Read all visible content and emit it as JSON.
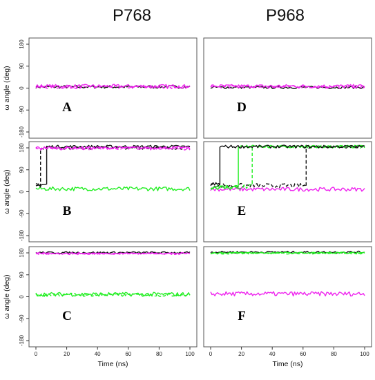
{
  "column_titles": [
    "P768",
    "P968"
  ],
  "colors": {
    "black": "#111111",
    "magenta": "#ee22ee",
    "green": "#22ee22"
  },
  "chart_data": [
    {
      "type": "line",
      "panel": "A",
      "column": "P768",
      "row": 0,
      "ylabel": "ω angle (deg)",
      "xlabel": "",
      "ylim": [
        -180,
        180
      ],
      "xlim": [
        0,
        100
      ],
      "yticks": [
        180,
        90,
        0,
        -90,
        -180
      ],
      "xticks": [],
      "series": [
        {
          "color": "black",
          "dash": false,
          "segments": [
            {
              "x0": 0,
              "x1": 100,
              "y": 5,
              "noise": 6
            }
          ]
        },
        {
          "color": "magenta",
          "dash": false,
          "segments": [
            {
              "x0": 0,
              "x1": 100,
              "y": 8,
              "noise": 7
            }
          ]
        },
        {
          "color": "magenta",
          "dash": true,
          "segments": [
            {
              "x0": 0,
              "x1": 100,
              "y": 4,
              "noise": 6
            }
          ]
        }
      ]
    },
    {
      "type": "line",
      "panel": "D",
      "column": "P968",
      "row": 0,
      "ylabel": "",
      "xlabel": "",
      "ylim": [
        -180,
        180
      ],
      "xlim": [
        0,
        100
      ],
      "yticks": [],
      "xticks": [],
      "series": [
        {
          "color": "black",
          "dash": false,
          "segments": [
            {
              "x0": 0,
              "x1": 100,
              "y": 3,
              "noise": 5
            }
          ]
        },
        {
          "color": "magenta",
          "dash": false,
          "segments": [
            {
              "x0": 0,
              "x1": 100,
              "y": 8,
              "noise": 7
            }
          ]
        },
        {
          "color": "magenta",
          "dash": true,
          "segments": [
            {
              "x0": 0,
              "x1": 100,
              "y": 5,
              "noise": 6
            }
          ]
        }
      ]
    },
    {
      "type": "line",
      "panel": "B",
      "column": "P768",
      "row": 1,
      "ylabel": "ω angle (deg)",
      "xlabel": "",
      "ylim": [
        -180,
        180
      ],
      "xlim": [
        0,
        100
      ],
      "yticks": [
        180,
        90,
        0,
        -90,
        -180
      ],
      "xticks": [],
      "series": [
        {
          "color": "green",
          "dash": false,
          "segments": [
            {
              "x0": 0,
              "x1": 100,
              "y": 12,
              "noise": 8
            }
          ]
        },
        {
          "color": "black",
          "dash": true,
          "segments": [
            {
              "x0": 0,
              "x1": 3,
              "y": 25,
              "noise": 8
            },
            {
              "x0": 3,
              "x1": 100,
              "y": 180,
              "noise": 6
            }
          ]
        },
        {
          "color": "black",
          "dash": false,
          "segments": [
            {
              "x0": 0,
              "x1": 7,
              "y": 30,
              "noise": 8
            },
            {
              "x0": 7,
              "x1": 100,
              "y": 185,
              "noise": 6
            }
          ]
        },
        {
          "color": "magenta",
          "dash": false,
          "segments": [
            {
              "x0": 0,
              "x1": 100,
              "y": 180,
              "noise": 6
            }
          ]
        },
        {
          "color": "magenta",
          "dash": true,
          "segments": [
            {
              "x0": 0,
              "x1": 100,
              "y": 177,
              "noise": 6
            }
          ]
        }
      ]
    },
    {
      "type": "line",
      "panel": "E",
      "column": "P968",
      "row": 1,
      "ylabel": "",
      "xlabel": "",
      "ylim": [
        -180,
        180
      ],
      "xlim": [
        0,
        100
      ],
      "yticks": [],
      "xticks": [],
      "series": [
        {
          "color": "magenta",
          "dash": false,
          "segments": [
            {
              "x0": 0,
              "x1": 100,
              "y": 10,
              "noise": 8
            }
          ]
        },
        {
          "color": "black",
          "dash": true,
          "segments": [
            {
              "x0": 0,
              "x1": 62,
              "y": 25,
              "noise": 9
            },
            {
              "x0": 62,
              "x1": 100,
              "y": 185,
              "noise": 6
            }
          ]
        },
        {
          "color": "green",
          "dash": true,
          "segments": [
            {
              "x0": 0,
              "x1": 27,
              "y": 20,
              "noise": 9
            },
            {
              "x0": 27,
              "x1": 100,
              "y": 185,
              "noise": 6
            }
          ]
        },
        {
          "color": "green",
          "dash": false,
          "segments": [
            {
              "x0": 0,
              "x1": 18,
              "y": 18,
              "noise": 9
            },
            {
              "x0": 18,
              "x1": 100,
              "y": 185,
              "noise": 6
            }
          ]
        },
        {
          "color": "black",
          "dash": false,
          "segments": [
            {
              "x0": 0,
              "x1": 6,
              "y": 30,
              "noise": 9
            },
            {
              "x0": 6,
              "x1": 100,
              "y": 185,
              "noise": 6
            }
          ]
        }
      ]
    },
    {
      "type": "line",
      "panel": "C",
      "column": "P768",
      "row": 2,
      "ylabel": "ω angle (deg)",
      "xlabel": "Time (ns)",
      "ylim": [
        -180,
        180
      ],
      "xlim": [
        0,
        100
      ],
      "yticks": [
        180,
        90,
        0,
        -90,
        -180
      ],
      "xticks": [
        0,
        20,
        40,
        60,
        80,
        100
      ],
      "series": [
        {
          "color": "green",
          "dash": false,
          "segments": [
            {
              "x0": 0,
              "x1": 100,
              "y": 10,
              "noise": 8
            }
          ]
        },
        {
          "color": "green",
          "dash": true,
          "segments": [
            {
              "x0": 0,
              "x1": 100,
              "y": 8,
              "noise": 7
            }
          ]
        },
        {
          "color": "black",
          "dash": false,
          "segments": [
            {
              "x0": 0,
              "x1": 100,
              "y": 181,
              "noise": 4
            }
          ]
        },
        {
          "color": "magenta",
          "dash": false,
          "segments": [
            {
              "x0": 0,
              "x1": 100,
              "y": 178,
              "noise": 3
            }
          ]
        },
        {
          "color": "magenta",
          "dash": true,
          "segments": [
            {
              "x0": 0,
              "x1": 100,
              "y": 176,
              "noise": 3
            }
          ]
        }
      ]
    },
    {
      "type": "line",
      "panel": "F",
      "column": "P968",
      "row": 2,
      "ylabel": "",
      "xlabel": "Time (ns)",
      "ylim": [
        -180,
        180
      ],
      "xlim": [
        0,
        100
      ],
      "yticks": [],
      "xticks": [
        0,
        20,
        40,
        60,
        80,
        100
      ],
      "series": [
        {
          "color": "magenta",
          "dash": false,
          "segments": [
            {
              "x0": 0,
              "x1": 100,
              "y": 12,
              "noise": 9
            }
          ]
        },
        {
          "color": "black",
          "dash": false,
          "segments": [
            {
              "x0": 0,
              "x1": 100,
              "y": 183,
              "noise": 4
            }
          ]
        },
        {
          "color": "green",
          "dash": false,
          "segments": [
            {
              "x0": 0,
              "x1": 100,
              "y": 180,
              "noise": 3
            }
          ]
        },
        {
          "color": "green",
          "dash": true,
          "segments": [
            {
              "x0": 0,
              "x1": 100,
              "y": 178,
              "noise": 3
            }
          ]
        }
      ]
    }
  ]
}
